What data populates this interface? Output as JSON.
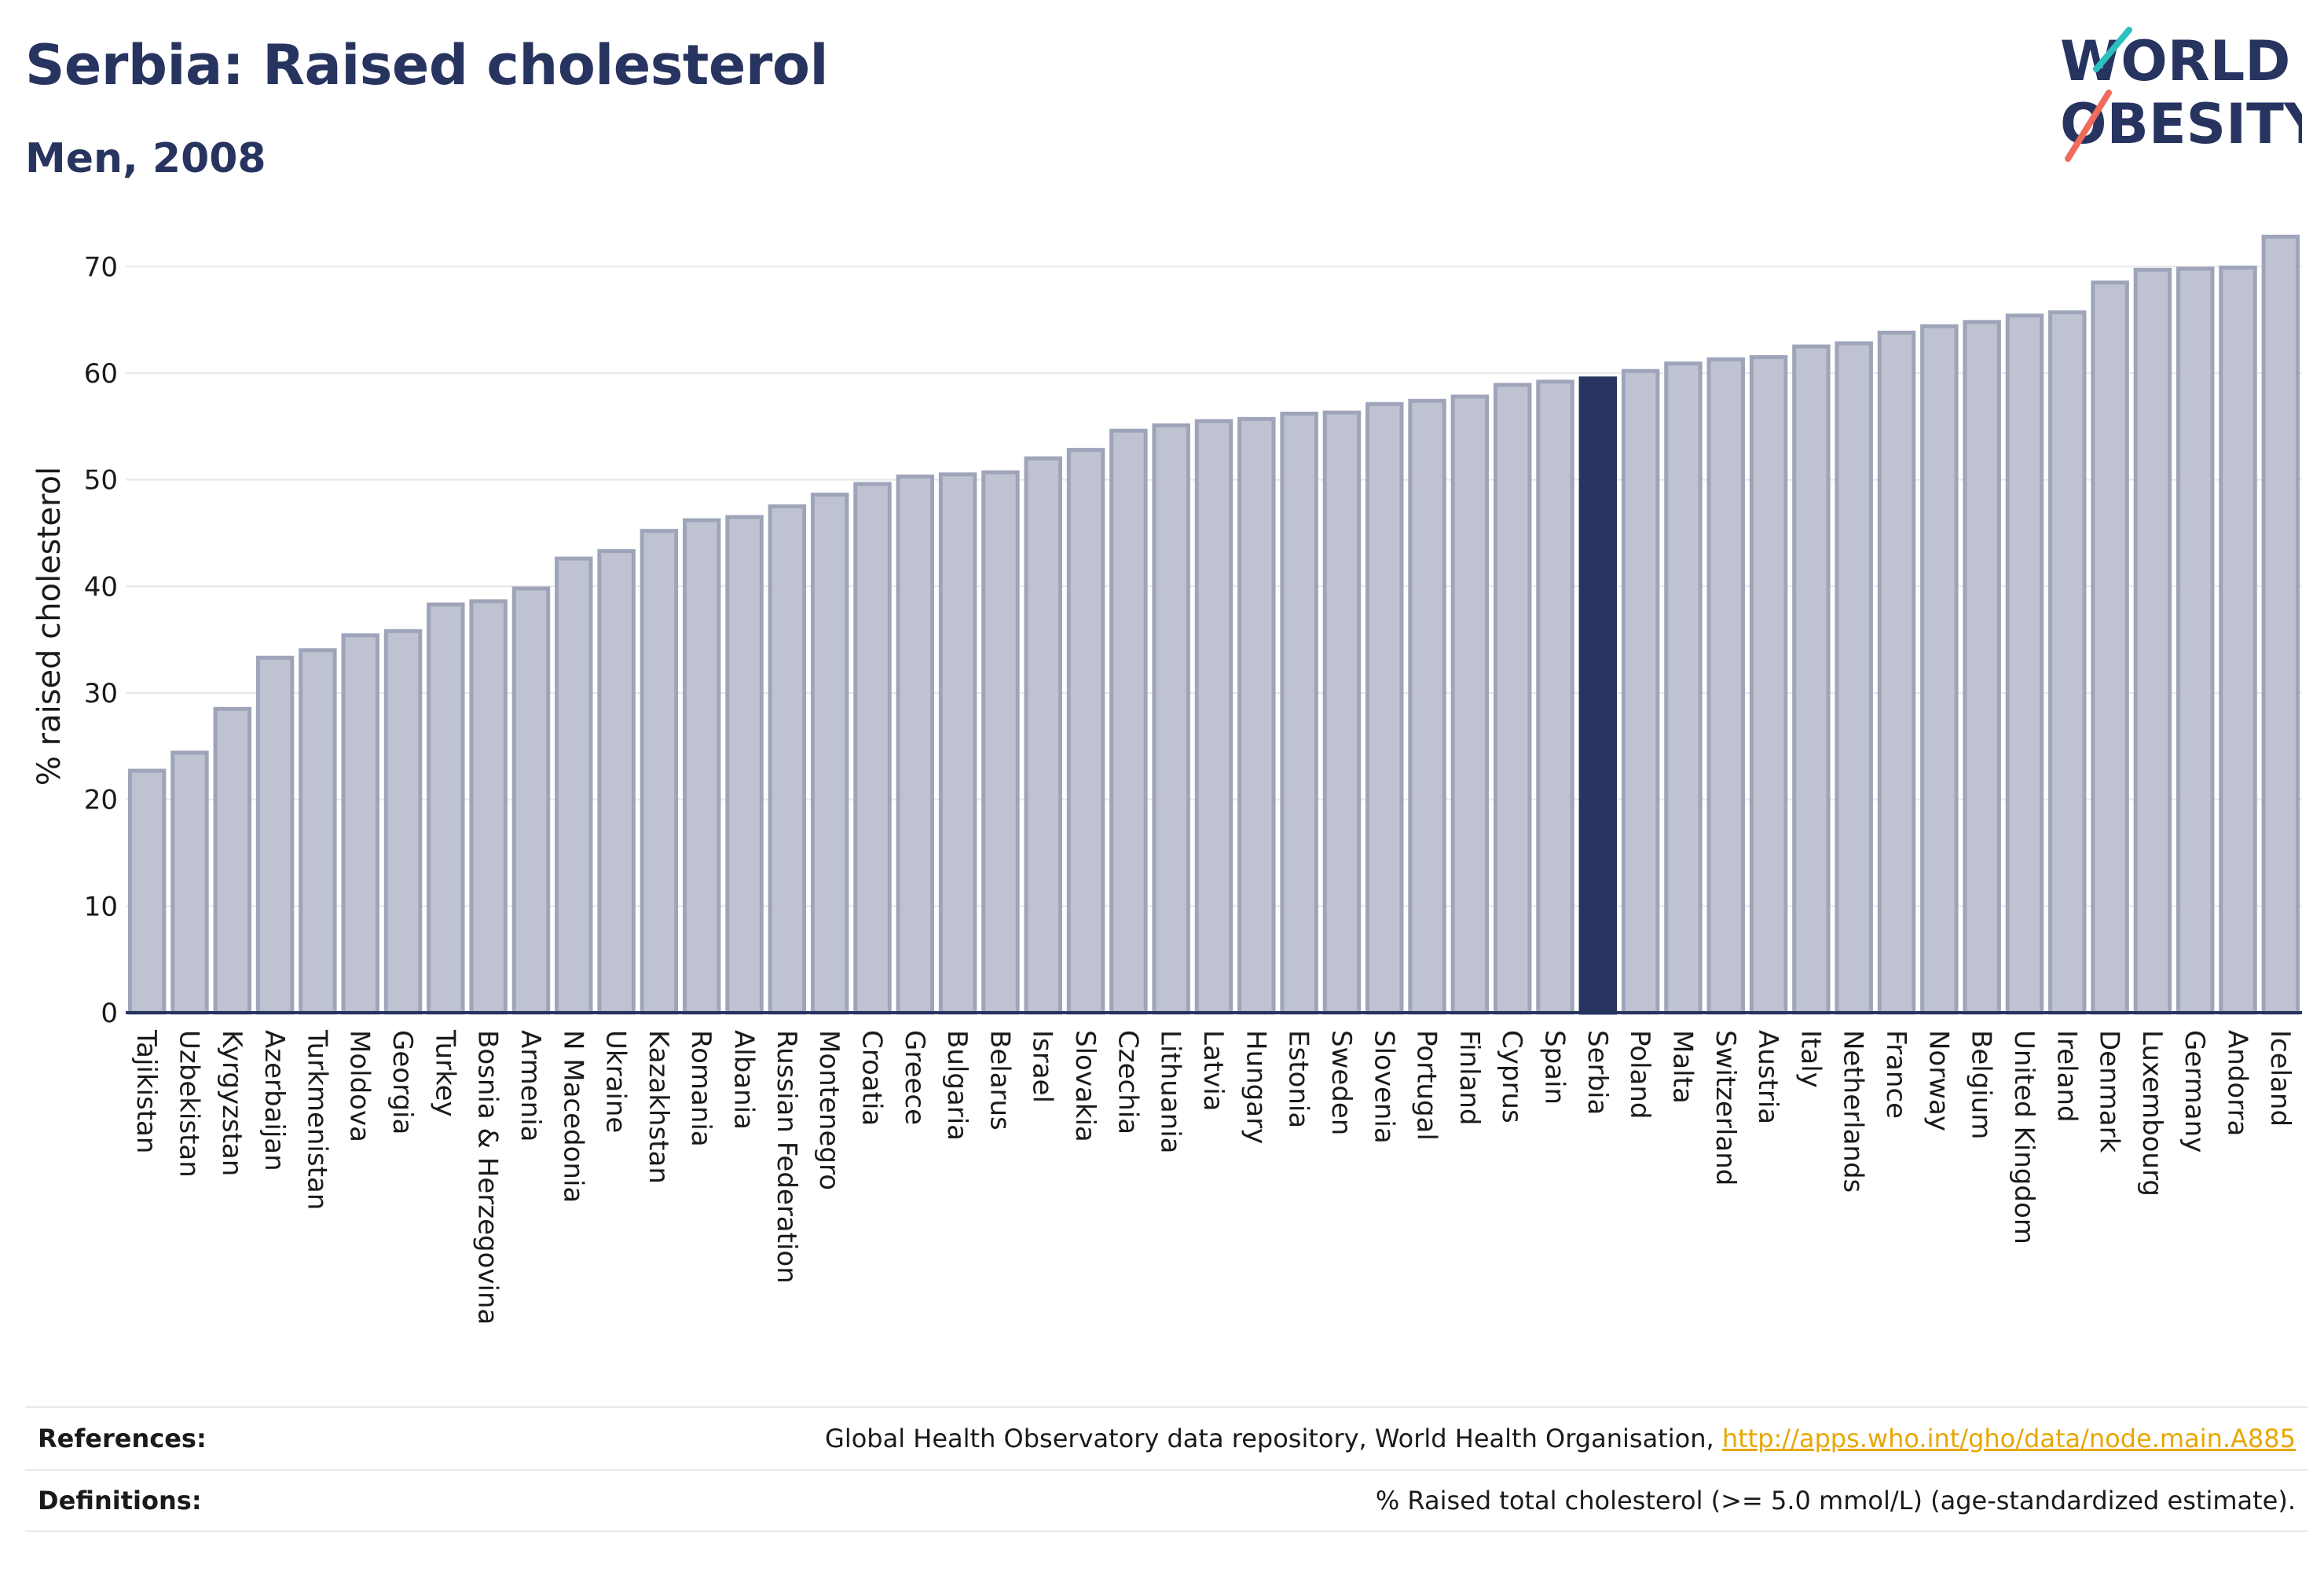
{
  "header": {
    "title": "Serbia: Raised cholesterol",
    "subtitle": "Men, 2008"
  },
  "logo": {
    "line1": "WORLD",
    "line2": "OBESITY",
    "icon": "world-obesity-logo"
  },
  "colors": {
    "highlight": "#283460",
    "bar_fill": "#bfc3d1",
    "bar_stroke": "#9ea4ba",
    "text": "#283460",
    "link": "#e6a700"
  },
  "chart_data": {
    "type": "bar",
    "title": "Serbia: Raised cholesterol",
    "subtitle": "Men, 2008",
    "xlabel": "",
    "ylabel": "% raised cholesterol",
    "ylim": [
      0,
      74
    ],
    "yticks": [
      0,
      10,
      20,
      30,
      40,
      50,
      60,
      70
    ],
    "grid": true,
    "highlight_category": "Serbia",
    "categories": [
      "Tajikistan",
      "Uzbekistan",
      "Kyrgyzstan",
      "Azerbaijan",
      "Turkmenistan",
      "Moldova",
      "Georgia",
      "Turkey",
      "Bosnia & Herzegovina",
      "Armenia",
      "N Macedonia",
      "Ukraine",
      "Kazakhstan",
      "Romania",
      "Albania",
      "Russian Federation",
      "Montenegro",
      "Croatia",
      "Greece",
      "Bulgaria",
      "Belarus",
      "Israel",
      "Slovakia",
      "Czechia",
      "Lithuania",
      "Latvia",
      "Hungary",
      "Estonia",
      "Sweden",
      "Slovenia",
      "Portugal",
      "Finland",
      "Cyprus",
      "Spain",
      "Serbia",
      "Poland",
      "Malta",
      "Switzerland",
      "Austria",
      "Italy",
      "Netherlands",
      "France",
      "Norway",
      "Belgium",
      "United Kingdom",
      "Ireland",
      "Denmark",
      "Luxembourg",
      "Germany",
      "Andorra",
      "Iceland"
    ],
    "values": [
      22.7,
      24.4,
      28.5,
      33.3,
      34.0,
      35.4,
      35.8,
      38.3,
      38.6,
      39.8,
      42.6,
      43.3,
      45.2,
      46.2,
      46.5,
      47.5,
      48.6,
      49.6,
      50.3,
      50.5,
      50.7,
      52.0,
      52.8,
      54.6,
      55.1,
      55.5,
      55.7,
      56.2,
      56.3,
      57.1,
      57.4,
      57.8,
      58.9,
      59.2,
      59.5,
      60.2,
      60.9,
      61.3,
      61.5,
      62.5,
      62.8,
      63.8,
      64.4,
      64.8,
      65.4,
      65.7,
      68.5,
      69.7,
      69.8,
      69.9,
      72.8
    ]
  },
  "footer": {
    "references_label": "References:",
    "references_text": "Global Health Observatory data repository, World Health Organisation, ",
    "references_link": "http://apps.who.int/gho/data/node.main.A885",
    "definitions_label": "Definitions:",
    "definitions_text": "% Raised total cholesterol (>= 5.0 mmol/L) (age-standardized estimate)."
  }
}
